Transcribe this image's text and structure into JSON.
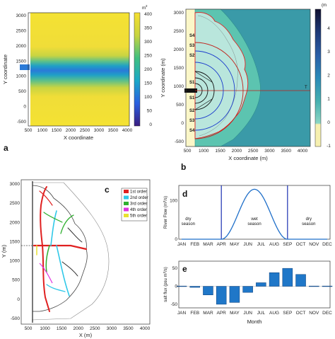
{
  "colors": {
    "yellow": "#f2e034",
    "teal": "#2fb0a0",
    "blue": "#2a6fd8",
    "navy": "#1e2f75",
    "bar": "#1f77c8",
    "flow": "#1f6fc9",
    "cream": "#fbf7c8",
    "red": "#e02020"
  },
  "panel_labels": {
    "a": "a",
    "b": "b",
    "c": "c",
    "d": "d",
    "e": "e"
  },
  "chart_data": [
    {
      "id": "a",
      "type": "heatmap",
      "xlabel": "X coordinate",
      "ylabel": "Y coordinate",
      "x_ticks": [
        "500",
        "1000",
        "1500",
        "2000",
        "2500",
        "3000",
        "3500",
        "4000"
      ],
      "y_ticks": [
        "3000",
        "2500",
        "2000",
        "1500",
        "1000",
        "500",
        "0",
        "-500"
      ],
      "colorbar": {
        "unit": "m",
        "unit_sup": "2",
        "ticks": [
          "400",
          "350",
          "300",
          "250",
          "200",
          "150",
          "100",
          "50",
          "0"
        ]
      }
    },
    {
      "id": "b",
      "type": "heatmap",
      "xlabel": "X coordinate (m)",
      "ylabel": "Y coordinate (m)",
      "x_ticks": [
        "500",
        "1000",
        "1500",
        "2000",
        "2500",
        "3000",
        "3500",
        "4000"
      ],
      "y_ticks": [
        "3000",
        "2500",
        "2000",
        "1500",
        "1000",
        "500",
        "0",
        "-500"
      ],
      "colorbar": {
        "unit": "(m",
        "ticks": [
          "4",
          "3",
          "2",
          "1",
          "0",
          "-1"
        ]
      },
      "section_labels": [
        "S4",
        "S3",
        "S2",
        "S1",
        "S1",
        "S2",
        "S3",
        "S4"
      ],
      "line_label": "T"
    },
    {
      "id": "c",
      "type": "diagram",
      "xlabel": "X (m)",
      "ylabel": "Y (m)",
      "x_ticks": [
        "500",
        "1000",
        "1500",
        "2000",
        "2500",
        "3000",
        "3500",
        "4000"
      ],
      "y_ticks": [
        "3000",
        "2500",
        "2000",
        "1500",
        "1000",
        "500",
        "0",
        "-500"
      ],
      "legend": [
        {
          "name": "1st order",
          "color": "#e02020"
        },
        {
          "name": "2nd order",
          "color": "#30c8e8"
        },
        {
          "name": "3rd order",
          "color": "#30b030"
        },
        {
          "name": "4th order",
          "color": "#e030e0"
        },
        {
          "name": "5th order",
          "color": "#e8e030"
        }
      ]
    },
    {
      "id": "d",
      "type": "line",
      "ylabel": "River Flow (m",
      "ylabel_sup": "3",
      "ylabel_tail": "/s)",
      "categories": [
        "JAN",
        "FEB",
        "MAR",
        "APR",
        "MAY",
        "JUN",
        "JUL",
        "AUG",
        "SEP",
        "OCT",
        "NOV",
        "DEC"
      ],
      "x": [
        1,
        2,
        3,
        4,
        5,
        6,
        7,
        8,
        9,
        10,
        11,
        12
      ],
      "values": [
        0,
        0,
        0,
        0,
        45,
        110,
        130,
        110,
        45,
        0,
        0,
        0
      ],
      "ylim": [
        0,
        140
      ],
      "y_ticks": [
        "100",
        "0"
      ],
      "annotations": [
        {
          "lines": [
            "dry",
            "season"
          ],
          "x": 1.5
        },
        {
          "lines": [
            "wet",
            "season"
          ],
          "x": 6.5
        },
        {
          "lines": [
            "dry",
            "season"
          ],
          "x": 10.6
        }
      ],
      "dividers_month": [
        4,
        9
      ]
    },
    {
      "id": "e",
      "type": "bar",
      "ylabel": "salt flux (psu m",
      "ylabel_sup": "3",
      "ylabel_tail": "/s)",
      "xlabel": "Month",
      "categories": [
        "JAN",
        "FEB",
        "MAR",
        "APR",
        "MAY",
        "JUN",
        "JUL",
        "AUG",
        "SEP",
        "OCT",
        "NOV",
        "DEC"
      ],
      "values": [
        0,
        -3,
        -24,
        -50,
        -45,
        -17,
        10,
        38,
        50,
        33,
        0,
        0
      ],
      "ylim": [
        -60,
        70
      ],
      "y_ticks": [
        "50",
        "0",
        "-50"
      ]
    }
  ]
}
